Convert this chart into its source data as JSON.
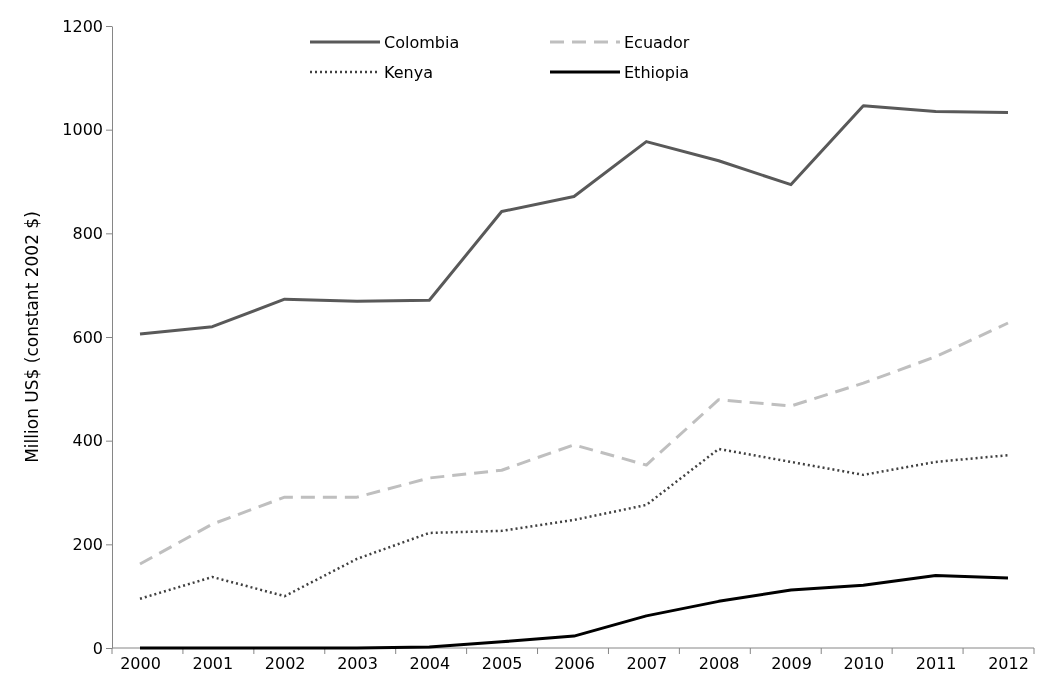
{
  "chart_data": {
    "type": "line",
    "ylabel": "Million US$ (constant 2002 $)",
    "categories": [
      "2000",
      "2001",
      "2002",
      "2003",
      "2004",
      "2005",
      "2006",
      "2007",
      "2008",
      "2009",
      "2010",
      "2011",
      "2012"
    ],
    "ylim": [
      0,
      1200
    ],
    "yticks": [
      0,
      200,
      400,
      600,
      800,
      1000,
      1200
    ],
    "grid": false,
    "legend": "top",
    "marker": "none",
    "series": [
      {
        "name": "Colombia",
        "color": "#595959",
        "line_style": "solid",
        "values": [
          606,
          620,
          673,
          669,
          671,
          842,
          871,
          977,
          940,
          894,
          1046,
          1035,
          1033
        ]
      },
      {
        "name": "Ecuador",
        "color": "#bfbfbf",
        "line_style": "dashed",
        "values": [
          162,
          239,
          291,
          291,
          328,
          343,
          392,
          353,
          479,
          467,
          511,
          562,
          627
        ]
      },
      {
        "name": "Kenya",
        "color": "#404040",
        "line_style": "dotted",
        "values": [
          95,
          137,
          100,
          172,
          222,
          226,
          247,
          276,
          384,
          359,
          334,
          359,
          372
        ]
      },
      {
        "name": "Ethiopia",
        "color": "#000000",
        "line_style": "solid",
        "values": [
          0,
          0,
          0,
          0,
          2,
          12,
          23,
          62,
          90,
          112,
          121,
          140,
          135
        ]
      }
    ]
  }
}
